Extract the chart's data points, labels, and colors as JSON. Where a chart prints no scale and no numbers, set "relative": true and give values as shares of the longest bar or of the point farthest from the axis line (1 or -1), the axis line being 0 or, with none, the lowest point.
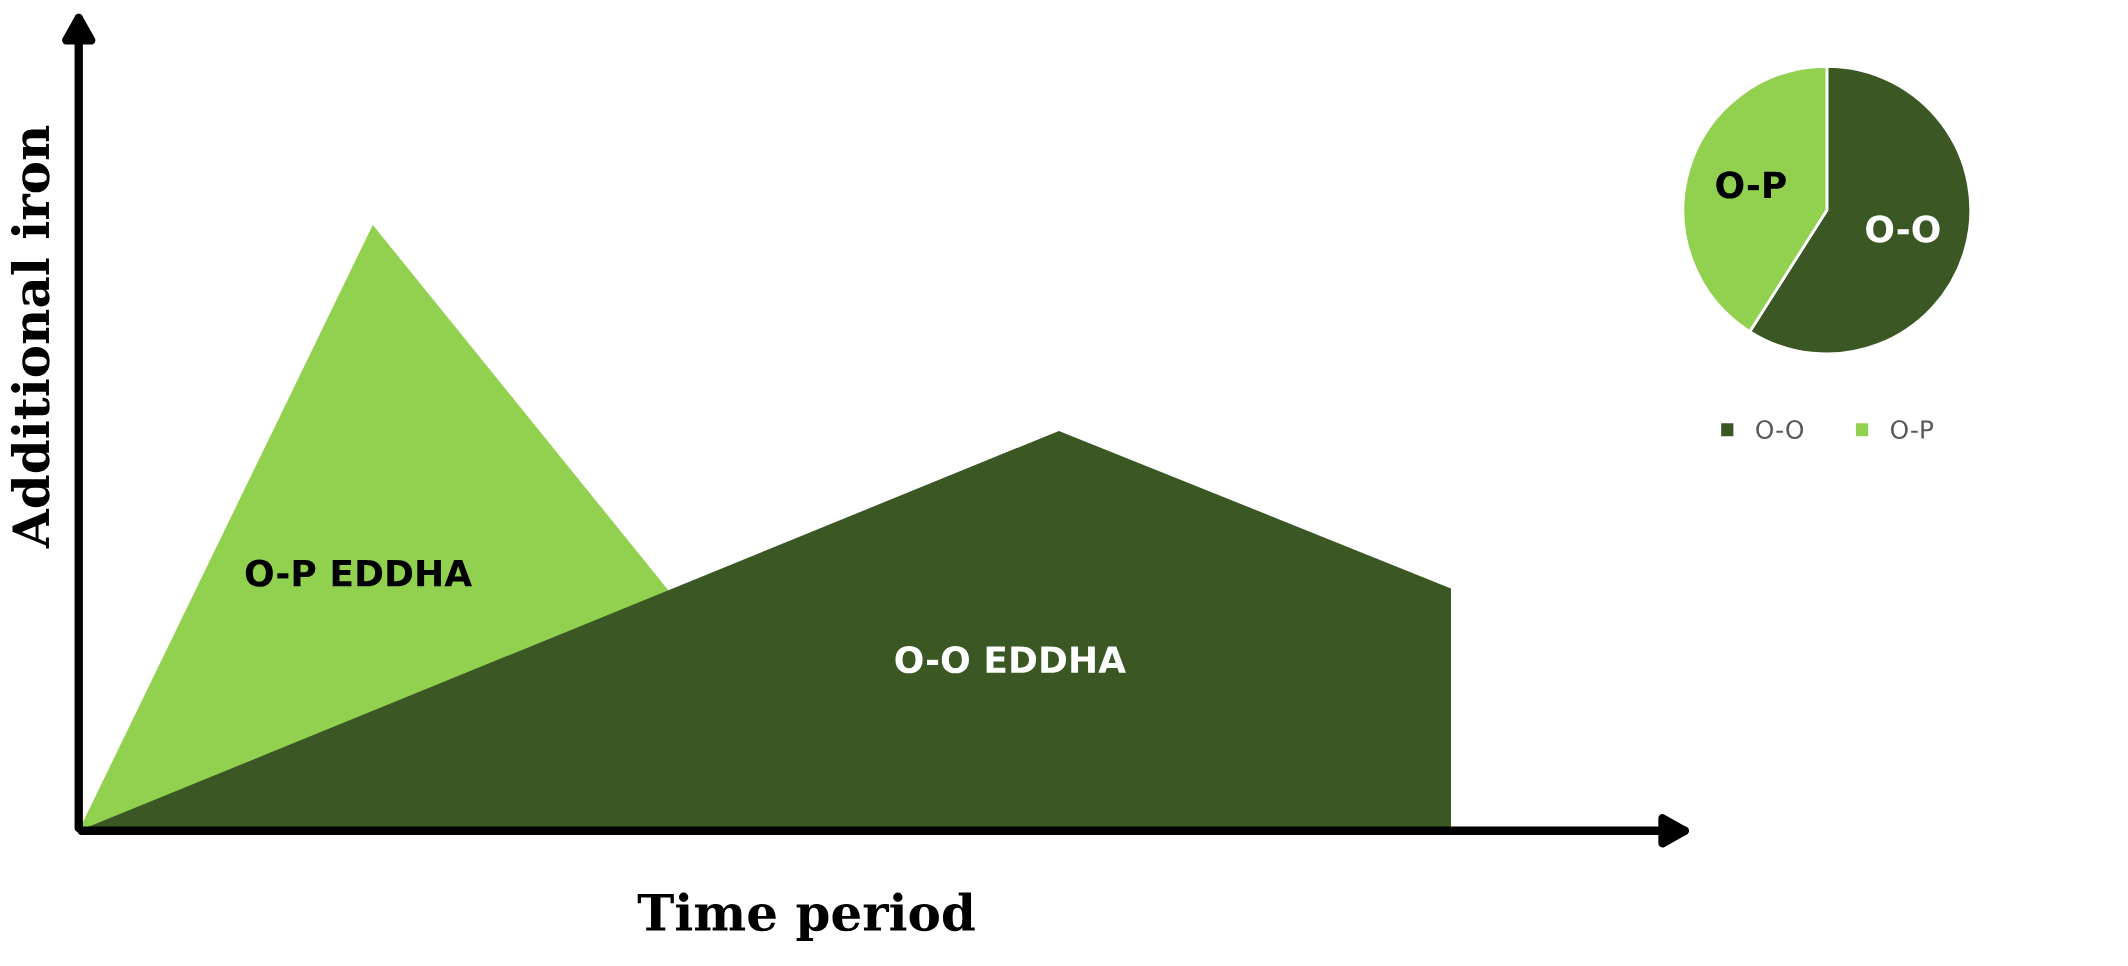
{
  "chart_data": [
    {
      "type": "area",
      "relative": true,
      "xlabel": "Time period",
      "ylabel": "Additional iron",
      "categories": [
        null,
        null,
        null,
        null,
        null,
        null,
        null,
        null,
        null,
        null,
        null,
        null,
        null,
        null,
        null
      ],
      "series": [
        {
          "name": "O-P EDDHA",
          "color": "#92d050",
          "values": [
            0,
            null,
            null,
            1,
            null,
            null,
            null,
            null,
            0,
            null,
            null,
            null,
            null,
            null,
            null
          ]
        },
        {
          "name": "O-O EDDHA",
          "color": "#3a5724",
          "values": [
            0,
            null,
            null,
            null,
            null,
            null,
            null,
            null,
            null,
            null,
            0.66,
            null,
            null,
            null,
            0.4
          ]
        }
      ]
    },
    {
      "type": "pie",
      "categories": [
        "O-O",
        "O-P"
      ],
      "values": [
        59,
        41
      ],
      "colors": [
        "#3a5724",
        "#92d050"
      ],
      "legend": "bottom"
    }
  ]
}
